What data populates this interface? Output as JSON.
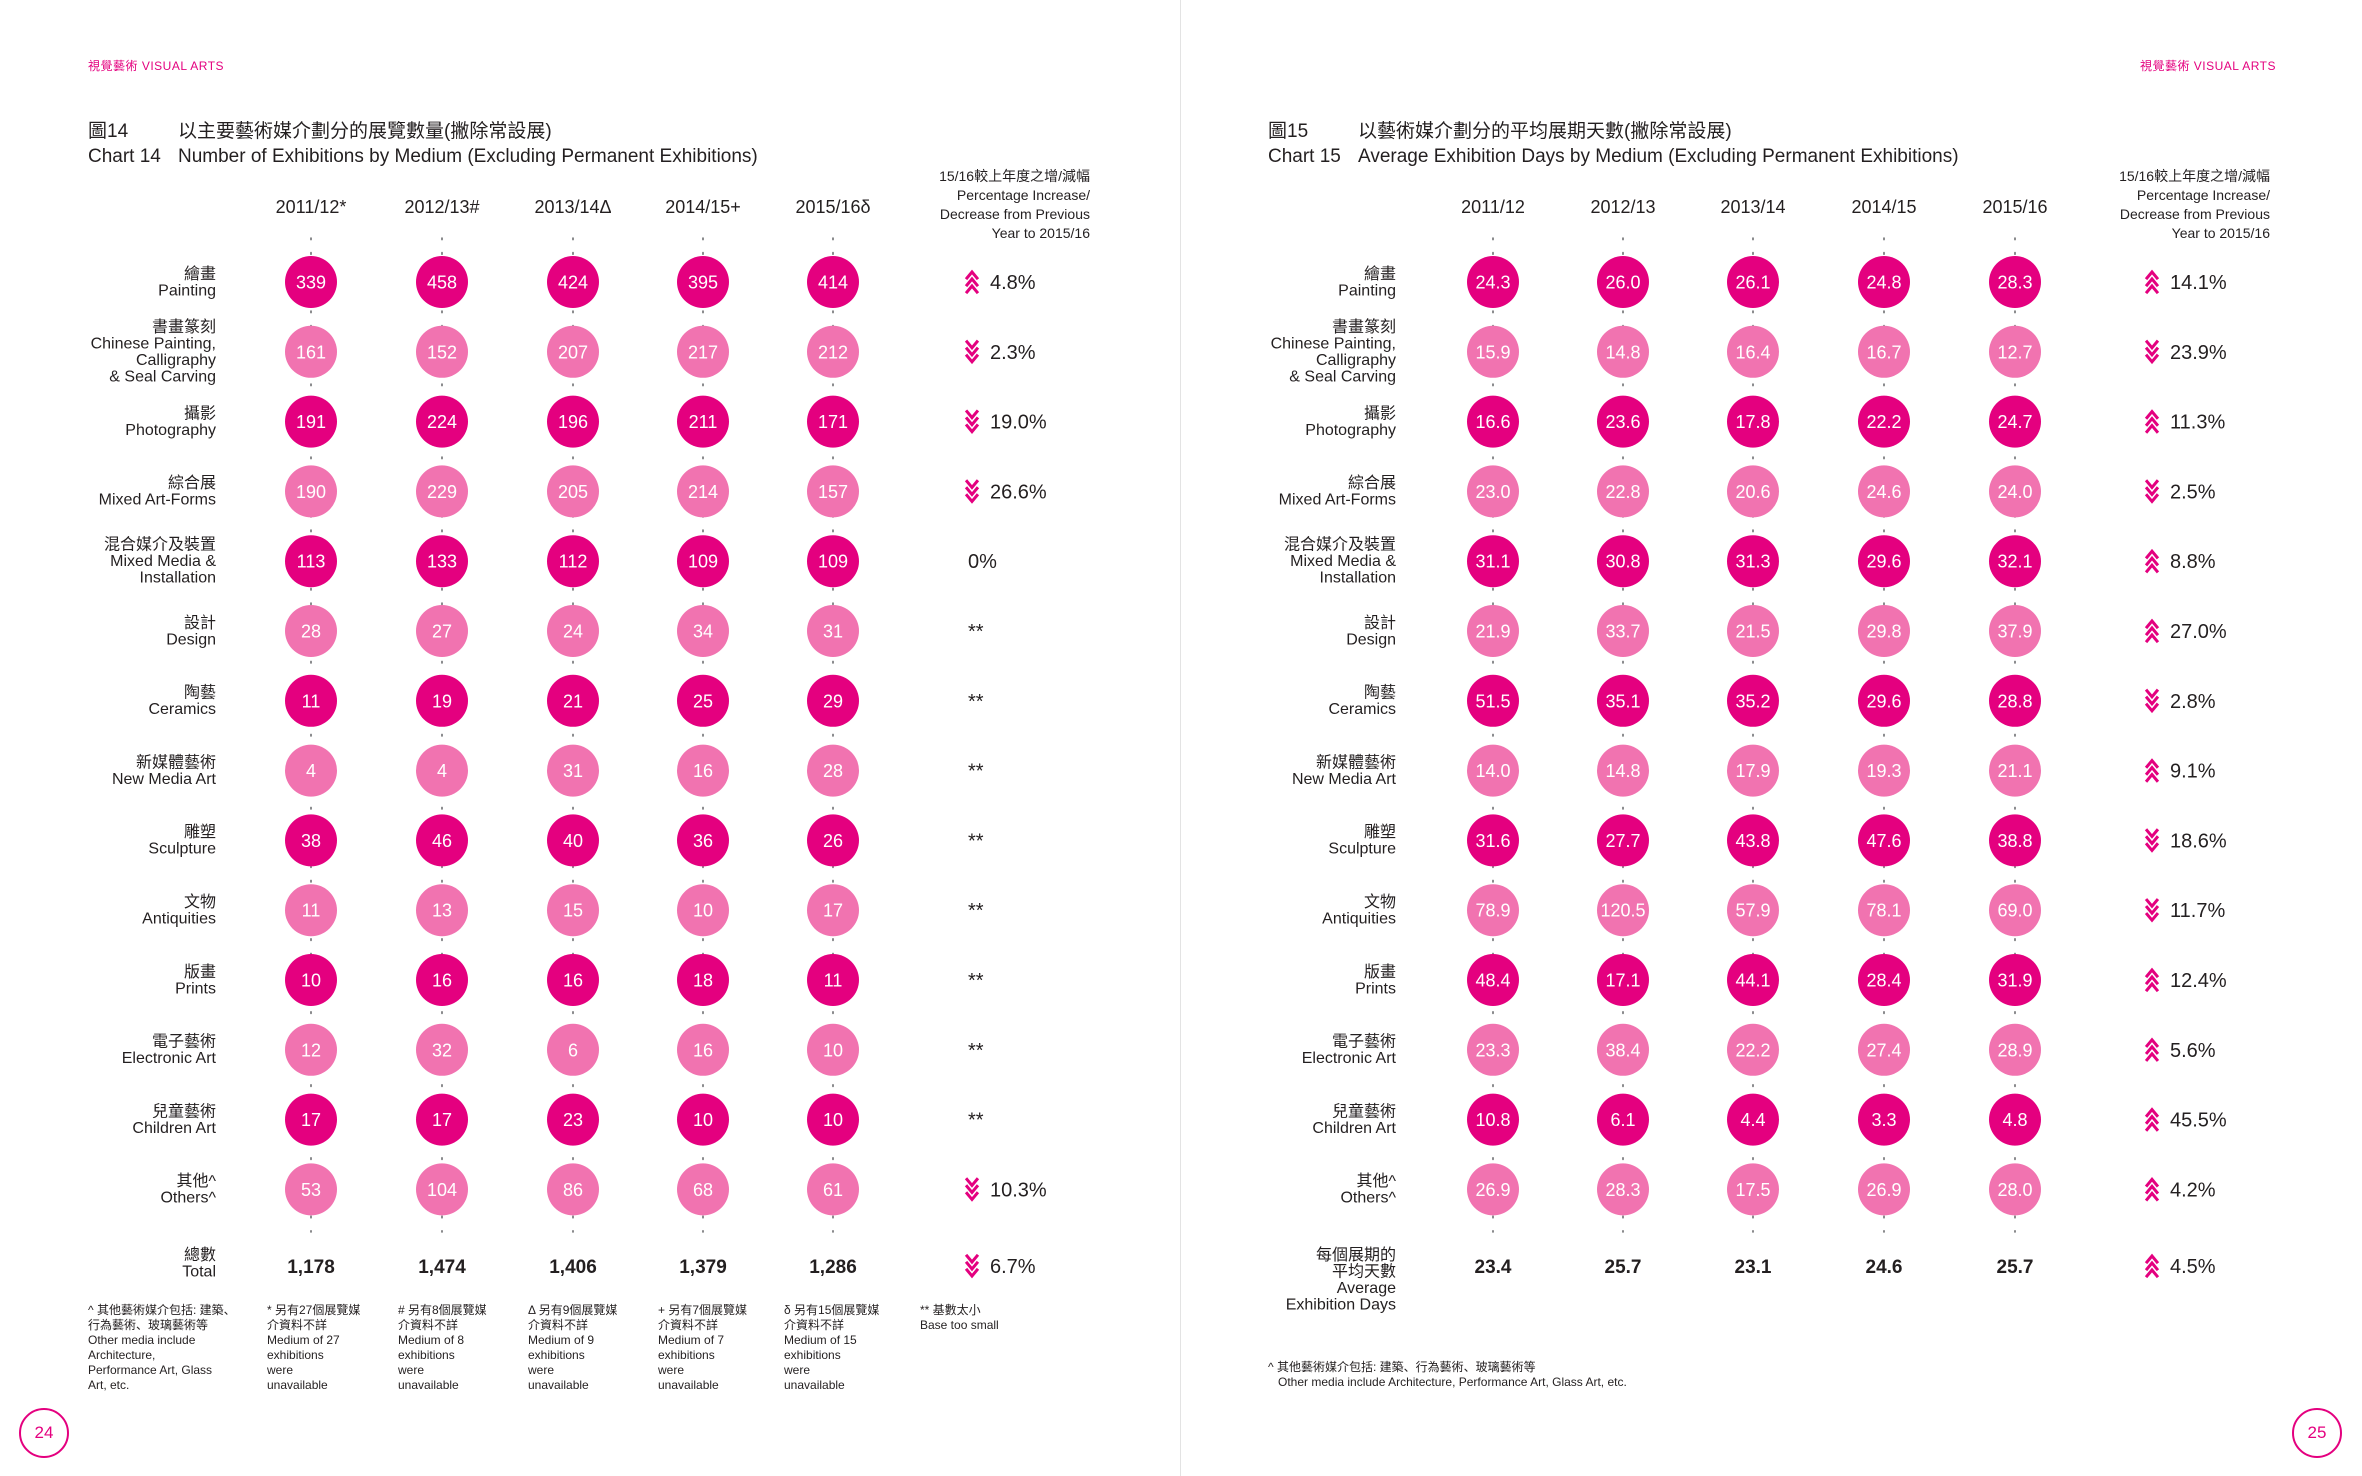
{
  "header": {
    "section_tag": "視覺藝術 VISUAL ARTS"
  },
  "pages": [
    {
      "number": "24"
    },
    {
      "number": "25"
    }
  ],
  "chart_data": [
    {
      "type": "table",
      "title_zh": "以主要藝術媒介劃分的展覽數量(撇除常設展)",
      "title_en": "Number of Exhibitions by Medium (Excluding Permanent Exhibitions)",
      "number_zh": "圖14",
      "number_en": "Chart 14",
      "columns": [
        "2011/12*",
        "2012/13#",
        "2013/14Δ",
        "2014/15+",
        "2015/16δ"
      ],
      "change_header": [
        "15/16較上年度之增/減幅",
        "Percentage Increase/",
        "Decrease from Previous",
        "Year to 2015/16"
      ],
      "categories": [
        {
          "zh": "繪畫",
          "en": [
            "Painting"
          ]
        },
        {
          "zh": "書畫篆刻",
          "en": [
            "Chinese Painting,",
            "Calligraphy",
            "& Seal Carving"
          ]
        },
        {
          "zh": "攝影",
          "en": [
            "Photography"
          ]
        },
        {
          "zh": "綜合展",
          "en": [
            "Mixed Art-Forms"
          ]
        },
        {
          "zh": "混合媒介及裝置",
          "en": [
            "Mixed Media &",
            "Installation"
          ]
        },
        {
          "zh": "設計",
          "en": [
            "Design"
          ]
        },
        {
          "zh": "陶藝",
          "en": [
            "Ceramics"
          ]
        },
        {
          "zh": "新媒體藝術",
          "en": [
            "New Media Art"
          ]
        },
        {
          "zh": "雕塑",
          "en": [
            "Sculpture"
          ]
        },
        {
          "zh": "文物",
          "en": [
            "Antiquities"
          ]
        },
        {
          "zh": "版畫",
          "en": [
            "Prints"
          ]
        },
        {
          "zh": "電子藝術",
          "en": [
            "Electronic Art"
          ]
        },
        {
          "zh": "兒童藝術",
          "en": [
            "Children Art"
          ]
        },
        {
          "zh": "其他^",
          "en": [
            "Others^"
          ]
        }
      ],
      "values": [
        [
          "339",
          "458",
          "424",
          "395",
          "414"
        ],
        [
          "161",
          "152",
          "207",
          "217",
          "212"
        ],
        [
          "191",
          "224",
          "196",
          "211",
          "171"
        ],
        [
          "190",
          "229",
          "205",
          "214",
          "157"
        ],
        [
          "113",
          "133",
          "112",
          "109",
          "109"
        ],
        [
          "28",
          "27",
          "24",
          "34",
          "31"
        ],
        [
          "11",
          "19",
          "21",
          "25",
          "29"
        ],
        [
          "4",
          "4",
          "31",
          "16",
          "28"
        ],
        [
          "38",
          "46",
          "40",
          "36",
          "26"
        ],
        [
          "11",
          "13",
          "15",
          "10",
          "17"
        ],
        [
          "10",
          "16",
          "16",
          "18",
          "11"
        ],
        [
          "12",
          "32",
          "6",
          "16",
          "10"
        ],
        [
          "17",
          "17",
          "23",
          "10",
          "10"
        ],
        [
          "53",
          "104",
          "86",
          "68",
          "61"
        ]
      ],
      "changes": [
        {
          "dir": "up",
          "text": "4.8%"
        },
        {
          "dir": "down",
          "text": "2.3%"
        },
        {
          "dir": "down",
          "text": "19.0%"
        },
        {
          "dir": "down",
          "text": "26.6%"
        },
        {
          "dir": "none",
          "text": "0%"
        },
        {
          "dir": "none",
          "text": "**"
        },
        {
          "dir": "none",
          "text": "**"
        },
        {
          "dir": "none",
          "text": "**"
        },
        {
          "dir": "none",
          "text": "**"
        },
        {
          "dir": "none",
          "text": "**"
        },
        {
          "dir": "none",
          "text": "**"
        },
        {
          "dir": "none",
          "text": "**"
        },
        {
          "dir": "none",
          "text": "**"
        },
        {
          "dir": "down",
          "text": "10.3%"
        }
      ],
      "total": {
        "zh": [
          "總數"
        ],
        "en": [
          "Total"
        ],
        "values": [
          "1,178",
          "1,474",
          "1,406",
          "1,379",
          "1,286"
        ],
        "change": {
          "dir": "down",
          "text": "6.7%"
        }
      },
      "footnotes": [
        [
          "^ 其他藝術媒介包括: 建築、",
          "行為藝術、玻璃藝術等",
          "Other media include",
          "Architecture,",
          "Performance Art, Glass",
          "Art, etc."
        ],
        [
          "* 另有27個展覽媒",
          "介資料不詳",
          "Medium of 27",
          "exhibitions",
          "were",
          "unavailable"
        ],
        [
          "# 另有8個展覽媒",
          "介資料不詳",
          "Medium of 8",
          "exhibitions",
          "were",
          "unavailable"
        ],
        [
          "Δ 另有9個展覽媒",
          "介資料不詳",
          "Medium of 9",
          "exhibitions",
          "were",
          "unavailable"
        ],
        [
          "+ 另有7個展覽媒",
          "介資料不詳",
          "Medium of 7",
          "exhibitions",
          "were",
          "unavailable"
        ],
        [
          "δ 另有15個展覽媒",
          "介資料不詳",
          "Medium of 15",
          "exhibitions",
          "were",
          "unavailable"
        ],
        [
          "** 基數太小",
          "Base too small"
        ]
      ]
    },
    {
      "type": "table",
      "title_zh": "以藝術媒介劃分的平均展期天數(撇除常設展)",
      "title_en": "Average Exhibition Days by Medium (Excluding Permanent Exhibitions)",
      "number_zh": "圖15",
      "number_en": "Chart 15",
      "columns": [
        "2011/12",
        "2012/13",
        "2013/14",
        "2014/15",
        "2015/16"
      ],
      "change_header": [
        "15/16較上年度之增/減幅",
        "Percentage Increase/",
        "Decrease from Previous",
        "Year to 2015/16"
      ],
      "categories": [
        {
          "zh": "繪畫",
          "en": [
            "Painting"
          ]
        },
        {
          "zh": "書畫篆刻",
          "en": [
            "Chinese Painting,",
            "Calligraphy",
            "& Seal Carving"
          ]
        },
        {
          "zh": "攝影",
          "en": [
            "Photography"
          ]
        },
        {
          "zh": "綜合展",
          "en": [
            "Mixed Art-Forms"
          ]
        },
        {
          "zh": "混合媒介及裝置",
          "en": [
            "Mixed Media &",
            "Installation"
          ]
        },
        {
          "zh": "設計",
          "en": [
            "Design"
          ]
        },
        {
          "zh": "陶藝",
          "en": [
            "Ceramics"
          ]
        },
        {
          "zh": "新媒體藝術",
          "en": [
            "New Media Art"
          ]
        },
        {
          "zh": "雕塑",
          "en": [
            "Sculpture"
          ]
        },
        {
          "zh": "文物",
          "en": [
            "Antiquities"
          ]
        },
        {
          "zh": "版畫",
          "en": [
            "Prints"
          ]
        },
        {
          "zh": "電子藝術",
          "en": [
            "Electronic Art"
          ]
        },
        {
          "zh": "兒童藝術",
          "en": [
            "Children Art"
          ]
        },
        {
          "zh": "其他^",
          "en": [
            "Others^"
          ]
        }
      ],
      "values": [
        [
          "24.3",
          "26.0",
          "26.1",
          "24.8",
          "28.3"
        ],
        [
          "15.9",
          "14.8",
          "16.4",
          "16.7",
          "12.7"
        ],
        [
          "16.6",
          "23.6",
          "17.8",
          "22.2",
          "24.7"
        ],
        [
          "23.0",
          "22.8",
          "20.6",
          "24.6",
          "24.0"
        ],
        [
          "31.1",
          "30.8",
          "31.3",
          "29.6",
          "32.1"
        ],
        [
          "21.9",
          "33.7",
          "21.5",
          "29.8",
          "37.9"
        ],
        [
          "51.5",
          "35.1",
          "35.2",
          "29.6",
          "28.8"
        ],
        [
          "14.0",
          "14.8",
          "17.9",
          "19.3",
          "21.1"
        ],
        [
          "31.6",
          "27.7",
          "43.8",
          "47.6",
          "38.8"
        ],
        [
          "78.9",
          "120.5",
          "57.9",
          "78.1",
          "69.0"
        ],
        [
          "48.4",
          "17.1",
          "44.1",
          "28.4",
          "31.9"
        ],
        [
          "23.3",
          "38.4",
          "22.2",
          "27.4",
          "28.9"
        ],
        [
          "10.8",
          "6.1",
          "4.4",
          "3.3",
          "4.8"
        ],
        [
          "26.9",
          "28.3",
          "17.5",
          "26.9",
          "28.0"
        ]
      ],
      "changes": [
        {
          "dir": "up",
          "text": "14.1%"
        },
        {
          "dir": "down",
          "text": "23.9%"
        },
        {
          "dir": "up",
          "text": "11.3%"
        },
        {
          "dir": "down",
          "text": "2.5%"
        },
        {
          "dir": "up",
          "text": "8.8%"
        },
        {
          "dir": "up",
          "text": "27.0%"
        },
        {
          "dir": "down",
          "text": "2.8%"
        },
        {
          "dir": "up",
          "text": "9.1%"
        },
        {
          "dir": "down",
          "text": "18.6%"
        },
        {
          "dir": "down",
          "text": "11.7%"
        },
        {
          "dir": "up",
          "text": "12.4%"
        },
        {
          "dir": "up",
          "text": "5.6%"
        },
        {
          "dir": "up",
          "text": "45.5%"
        },
        {
          "dir": "up",
          "text": "4.2%"
        }
      ],
      "total": {
        "zh": [
          "每個展期的",
          "平均天數"
        ],
        "en": [
          "Average",
          "Exhibition Days"
        ],
        "values": [
          "23.4",
          "25.7",
          "23.1",
          "24.6",
          "25.7"
        ],
        "change": {
          "dir": "up",
          "text": "4.5%"
        }
      },
      "footnotes": [
        [
          "^ 其他藝術媒介包括: 建築、行為藝術、玻璃藝術等",
          "Other media include Architecture, Performance Art, Glass Art, etc."
        ]
      ]
    }
  ],
  "colors": {
    "magenta": "#e4007f",
    "light_pink": "#f173b0",
    "text": "#231f20"
  }
}
